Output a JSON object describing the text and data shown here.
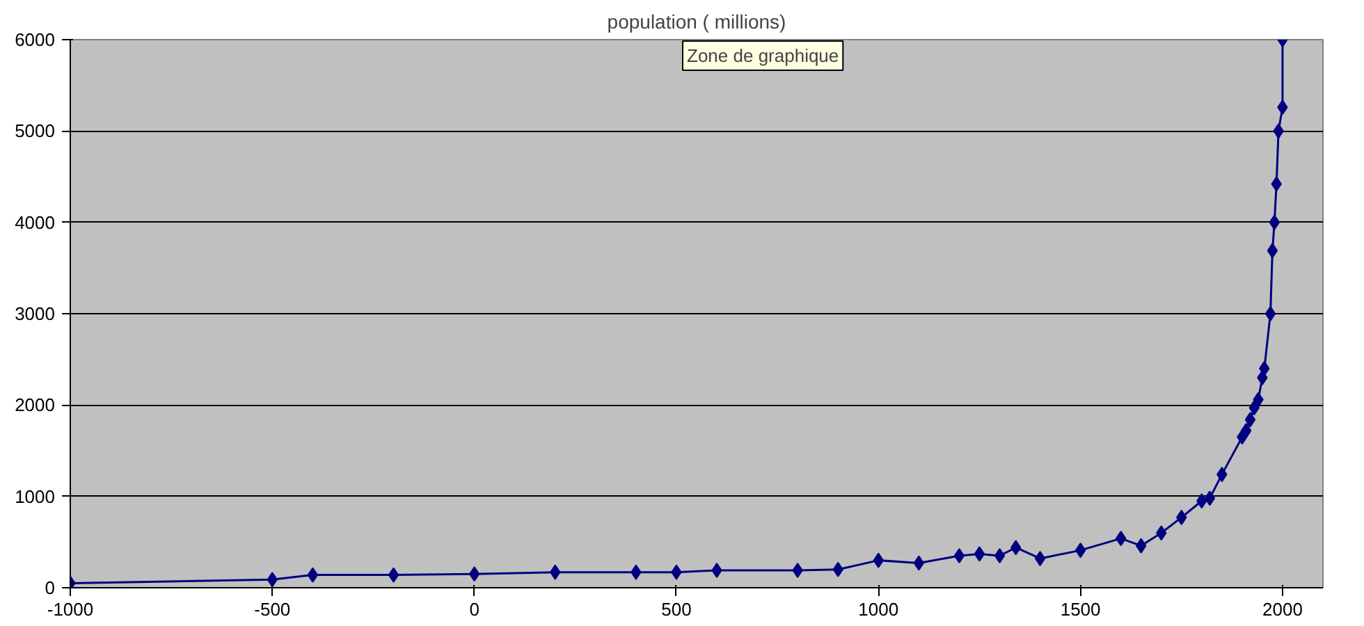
{
  "chart_data": {
    "type": "line",
    "title": "population ( millions)",
    "x": [
      -1000,
      -500,
      -400,
      -200,
      0,
      200,
      400,
      500,
      600,
      800,
      900,
      1000,
      1100,
      1200,
      1250,
      1300,
      1340,
      1400,
      1500,
      1600,
      1650,
      1700,
      1750,
      1800,
      1820,
      1850,
      1900,
      1910,
      1920,
      1930,
      1940,
      1950,
      1955,
      1970,
      1975,
      1980,
      1985,
      1990,
      2000,
      2000
    ],
    "series": [
      {
        "color": "#000080",
        "values": [
          50,
          90,
          140,
          140,
          150,
          170,
          170,
          170,
          190,
          190,
          200,
          300,
          270,
          350,
          370,
          350,
          440,
          320,
          410,
          540,
          460,
          600,
          770,
          950,
          980,
          1240,
          1650,
          1720,
          1840,
          1970,
          2060,
          2300,
          2400,
          3000,
          3690,
          4000,
          4420,
          5000,
          5260,
          6000
        ]
      }
    ],
    "xlim": [
      -1000,
      2100
    ],
    "xticks": [
      -1000,
      -500,
      0,
      500,
      1000,
      1500,
      2000
    ],
    "ylim": [
      0,
      6000
    ],
    "yticks": [
      0,
      1000,
      2000,
      3000,
      4000,
      5000,
      6000
    ],
    "grid": "y",
    "marker": "diamond",
    "line_style": "solid",
    "annotations": [
      "Zone de graphique"
    ]
  }
}
